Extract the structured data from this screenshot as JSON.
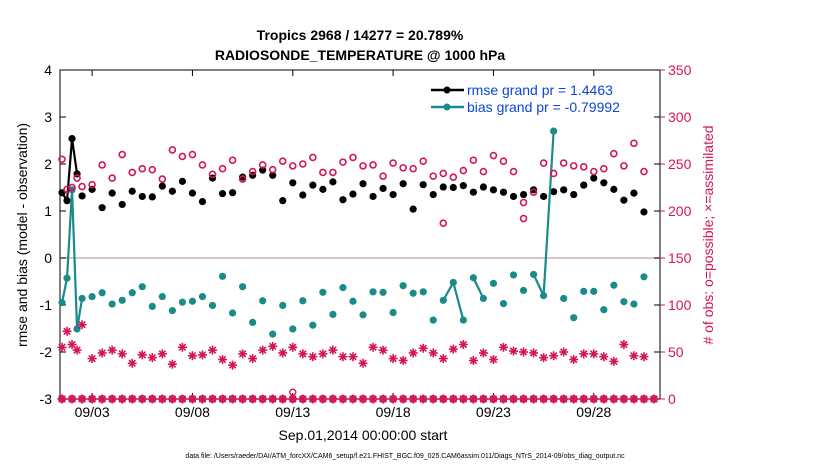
{
  "chart_data": {
    "type": "line",
    "title": "Tropics 2968 / 14277 = 20.789%",
    "subtitle": "RADIOSONDE_TEMPERATURE @ 1000 hPa",
    "xlabel": "Sep.01,2014 00:00:00 start",
    "ylabel_left": "rmse and bias (model - observation)",
    "ylabel_right": "# of obs: o=possible; ×=assimilated",
    "footer": "data file: /Users/raeder/DAI/ATM_forcXX/CAM6_setup/f.e21.FHIST_BGC.f09_025.CAM6assim.011/Diags_NTrS_2014-09/obs_diag_output.nc",
    "xlim": [
      1.4,
      31.3
    ],
    "ylim_left": [
      -3,
      4
    ],
    "ylim_right": [
      0,
      350
    ],
    "x_ticks": [
      3,
      8,
      13,
      18,
      23,
      28
    ],
    "x_tick_labels": [
      "09/03",
      "09/08",
      "09/13",
      "09/18",
      "09/23",
      "09/28"
    ],
    "y_ticks_left": [
      -3,
      -2,
      -1,
      0,
      1,
      2,
      3,
      4
    ],
    "y_tick_labels_left": [
      "-3",
      "-2",
      "-1",
      "0",
      "1",
      "2",
      "3",
      "4"
    ],
    "y_ticks_right": [
      0,
      50,
      100,
      150,
      200,
      250,
      300,
      350
    ],
    "y_tick_labels_right": [
      "0",
      "50",
      "100",
      "150",
      "200",
      "250",
      "300",
      "350"
    ],
    "legend": [
      {
        "label": "rmse grand pr = 1.4463",
        "color": "#000000"
      },
      {
        "label": "bias grand pr = -0.79992",
        "color": "#1a8a8a"
      }
    ],
    "colors": {
      "rmse": "#000000",
      "bias": "#1a8a8a",
      "obs": "#d4145a",
      "zero_line": "#c8b4bc",
      "legend_text": "#0b46d6"
    },
    "series": [
      {
        "name": "rmse",
        "axis": "left",
        "x": [
          1.5,
          1.75,
          2.0,
          2.25,
          2.5,
          3.0,
          3.5,
          4.0,
          4.5,
          5.0,
          5.5,
          6.0,
          6.5,
          7.0,
          7.5,
          8.0,
          8.5,
          9.0,
          9.5,
          10.0,
          10.5,
          11.0,
          11.5,
          12.0,
          12.5,
          13.0,
          13.5,
          14.0,
          14.5,
          15.0,
          15.5,
          16.0,
          16.5,
          17.0,
          17.5,
          18.0,
          18.5,
          19.0,
          19.5,
          20.0,
          20.5,
          21.0,
          21.5,
          22.0,
          22.5,
          23.0,
          23.5,
          24.0,
          24.5,
          25.0,
          25.5,
          26.0,
          26.5,
          27.0,
          27.5,
          28.0,
          28.5,
          29.0,
          29.5,
          30.0,
          30.5
        ],
        "values": [
          1.39,
          1.22,
          2.54,
          1.79,
          1.32,
          1.46,
          1.07,
          1.38,
          1.14,
          1.42,
          1.31,
          1.3,
          1.53,
          1.42,
          1.63,
          1.38,
          1.2,
          1.7,
          1.37,
          1.39,
          1.72,
          1.76,
          1.87,
          1.76,
          1.22,
          1.6,
          1.34,
          1.55,
          1.46,
          1.62,
          1.24,
          1.36,
          1.58,
          1.31,
          1.48,
          1.35,
          1.58,
          1.04,
          1.56,
          1.35,
          1.51,
          1.5,
          1.54,
          1.4,
          1.51,
          1.45,
          1.4,
          1.31,
          1.35,
          1.45,
          1.31,
          1.41,
          1.45,
          1.35,
          1.55,
          1.7,
          1.6,
          1.46,
          1.23,
          1.38,
          0.98
        ],
        "segments": [
          [
            0,
            3
          ]
        ]
      },
      {
        "name": "bias",
        "axis": "left",
        "x": [
          1.5,
          1.75,
          2.0,
          2.25,
          2.5,
          3.0,
          3.5,
          4.0,
          4.5,
          5.0,
          5.5,
          6.0,
          6.5,
          7.0,
          7.5,
          8.0,
          8.5,
          9.0,
          9.5,
          10.0,
          10.5,
          11.0,
          11.5,
          12.0,
          12.5,
          13.0,
          13.5,
          14.0,
          14.5,
          15.0,
          15.5,
          16.0,
          16.5,
          17.0,
          17.5,
          18.0,
          18.5,
          19.0,
          19.5,
          20.0,
          20.5,
          21.0,
          21.5,
          22.0,
          22.5,
          23.0,
          23.5,
          24.0,
          24.5,
          25.0,
          25.5,
          26.0,
          26.5,
          27.0,
          27.5,
          28.0,
          28.5,
          29.0,
          29.5,
          30.0,
          30.5
        ],
        "values": [
          -0.95,
          -0.43,
          1.45,
          -1.51,
          -0.86,
          -0.82,
          -0.74,
          -0.98,
          -0.9,
          -0.74,
          -0.61,
          -1.03,
          -0.82,
          -1.12,
          -0.94,
          -0.92,
          -0.82,
          -1.01,
          -0.39,
          -1.17,
          -0.61,
          -1.37,
          -0.91,
          -1.62,
          -1.01,
          -1.51,
          -0.91,
          -1.43,
          -0.73,
          -1.2,
          -0.63,
          -0.92,
          -1.21,
          -0.72,
          -0.73,
          -1.16,
          -0.59,
          -0.75,
          -0.72,
          -1.32,
          -0.9,
          -0.52,
          -1.32,
          -0.42,
          -0.86,
          -0.54,
          -0.97,
          -0.36,
          -0.69,
          -0.35,
          -0.8,
          2.7,
          -0.86,
          -1.27,
          -0.71,
          -0.71,
          -1.1,
          -0.58,
          -0.93,
          -0.98,
          -0.4
        ],
        "segments": [
          [
            0,
            4
          ],
          [
            40,
            42
          ],
          [
            43,
            44
          ],
          [
            49,
            51
          ]
        ]
      },
      {
        "name": "obs possible",
        "axis": "right",
        "marker": "circle",
        "x": [
          1.5,
          1.75,
          2.0,
          2.25,
          2.5,
          3.0,
          3.5,
          4.0,
          4.5,
          5.0,
          5.5,
          6.0,
          6.5,
          7.0,
          7.5,
          8.0,
          8.5,
          9.0,
          9.5,
          10.0,
          10.5,
          11.0,
          11.5,
          12.0,
          12.5,
          13.0,
          13.5,
          14.0,
          14.5,
          15.0,
          15.5,
          16.0,
          16.5,
          17.0,
          17.5,
          18.0,
          18.5,
          19.0,
          19.5,
          20.0,
          20.5,
          21.0,
          21.5,
          22.0,
          22.5,
          23.0,
          23.5,
          24.0,
          24.5,
          25.0,
          25.5,
          26.0,
          26.5,
          27.0,
          27.5,
          28.0,
          28.5,
          29.0,
          29.5,
          30.0,
          30.5
        ],
        "values": [
          255,
          223,
          225,
          235,
          226,
          228,
          249,
          235,
          260,
          241,
          245,
          244,
          234,
          265,
          258,
          260,
          249,
          239,
          245,
          254,
          234,
          242,
          249,
          244,
          253,
          248,
          250,
          257,
          241,
          241,
          252,
          257,
          248,
          249,
          237,
          251,
          246,
          245,
          253,
          237,
          240,
          236,
          243,
          254,
          242,
          259,
          253,
          242,
          209,
          220,
          251,
          240,
          251,
          248,
          247,
          242,
          245,
          261,
          248,
          272,
          242
        ],
        "outliers": [
          {
            "x": 20.5,
            "value": 187
          },
          {
            "x": 24.5,
            "value": 192
          }
        ]
      },
      {
        "name": "obs assimilated",
        "axis": "right",
        "marker": "asterisk",
        "x": [
          1.5,
          1.75,
          2.0,
          2.25,
          2.5,
          3.0,
          3.5,
          4.0,
          4.5,
          5.0,
          5.5,
          6.0,
          6.5,
          7.0,
          7.5,
          8.0,
          8.5,
          9.0,
          9.5,
          10.0,
          10.5,
          11.0,
          11.5,
          12.0,
          12.5,
          13.0,
          13.5,
          14.0,
          14.5,
          15.0,
          15.5,
          16.0,
          16.5,
          17.0,
          17.5,
          18.0,
          18.5,
          19.0,
          19.5,
          20.0,
          20.5,
          21.0,
          21.5,
          22.0,
          22.5,
          23.0,
          23.5,
          24.0,
          24.5,
          25.0,
          25.5,
          26.0,
          26.5,
          27.0,
          27.5,
          28.0,
          28.5,
          29.0,
          29.5,
          30.0,
          30.5
        ],
        "values": [
          55,
          72,
          58,
          52,
          79,
          43,
          49,
          52,
          48,
          38,
          47,
          44,
          48,
          37,
          55,
          46,
          47,
          52,
          42,
          36,
          48,
          43,
          52,
          56,
          49,
          55,
          48,
          45,
          48,
          52,
          45,
          45,
          38,
          55,
          52,
          43,
          41,
          49,
          54,
          49,
          43,
          53,
          58,
          41,
          49,
          42,
          55,
          51,
          50,
          49,
          44,
          46,
          50,
          42,
          48,
          48,
          45,
          40,
          58,
          46,
          45
        ]
      },
      {
        "name": "obs zero",
        "axis": "right",
        "marker": "circle-asterisk",
        "values_all": 0,
        "x_start": 1.5,
        "x_end": 31.0,
        "x_step": 0.5,
        "extra": {
          "x": 13.0,
          "value": 3
        }
      }
    ]
  }
}
